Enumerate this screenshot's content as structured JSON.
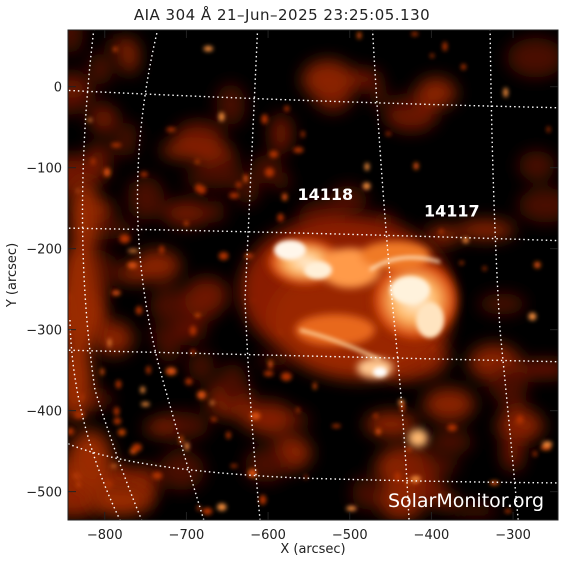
{
  "title": "AIA 304 Å 21–Jun–2025 23:25:05.130",
  "axes": {
    "xlabel": "X (arcsec)",
    "ylabel": "Y (arcsec)",
    "x_ticks": [
      "−800",
      "−700",
      "−600",
      "−500",
      "−400",
      "−300"
    ],
    "y_ticks": [
      "0",
      "−100",
      "−200",
      "−300",
      "−400",
      "−500"
    ],
    "xlim": [
      -845,
      -245
    ],
    "ylim": [
      -535,
      70
    ]
  },
  "regions": [
    {
      "label": "14118",
      "x": -530,
      "y": -140
    },
    {
      "label": "14117",
      "x": -375,
      "y": -160
    }
  ],
  "watermark": "SolarMonitor.org",
  "colors": {
    "background": "#000000",
    "emission_dark": "#5a0d00",
    "emission_mid": "#c43a06",
    "emission_bright": "#ffd9a0",
    "grid": "#ffffff"
  }
}
